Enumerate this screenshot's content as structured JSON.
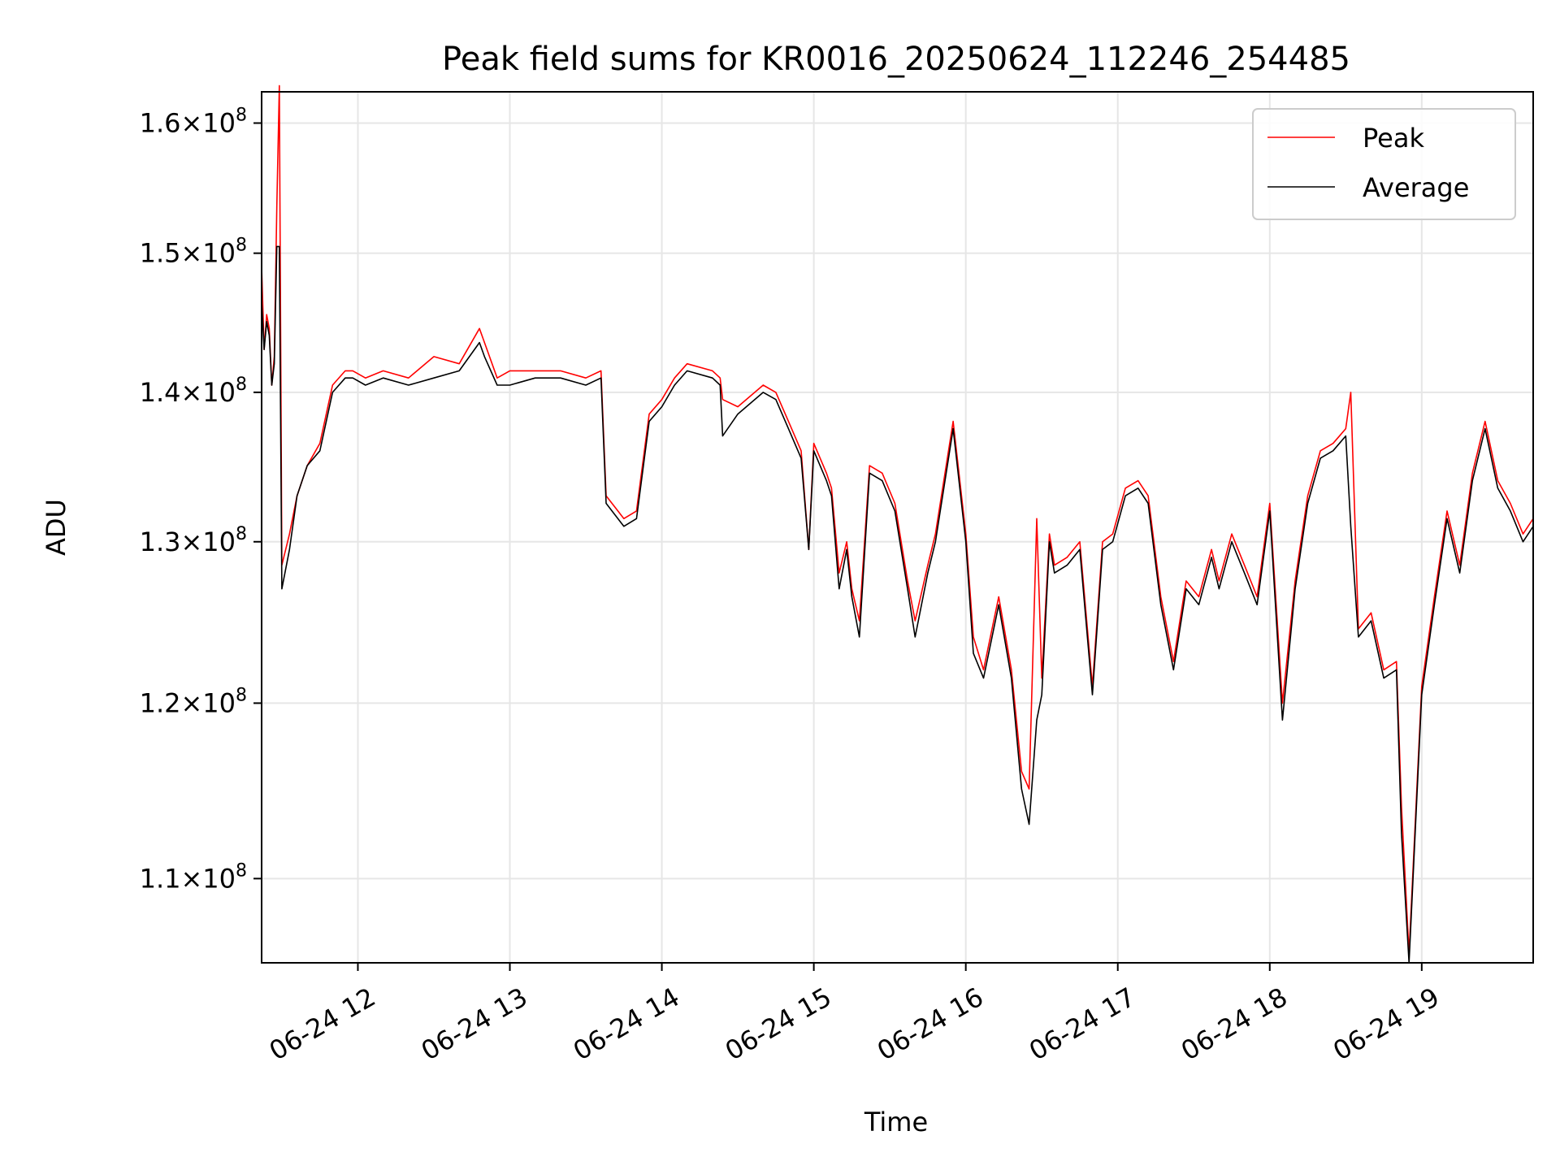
{
  "chart_data": {
    "type": "line",
    "title": "Peak field sums for KR0016_20250624_112246_254485",
    "xlabel": "Time",
    "ylabel": "ADU",
    "yscale": "log",
    "grid": true,
    "legend_position": "upper right",
    "xlim": [
      "2025-06-24 11:22",
      "2025-06-24 19:44"
    ],
    "ylim": [
      105500000,
      162500000
    ],
    "x_ticks": [
      {
        "value": "2025-06-24 12:00",
        "label": "06-24 12"
      },
      {
        "value": "2025-06-24 13:00",
        "label": "06-24 13"
      },
      {
        "value": "2025-06-24 14:00",
        "label": "06-24 14"
      },
      {
        "value": "2025-06-24 15:00",
        "label": "06-24 15"
      },
      {
        "value": "2025-06-24 16:00",
        "label": "06-24 16"
      },
      {
        "value": "2025-06-24 17:00",
        "label": "06-24 17"
      },
      {
        "value": "2025-06-24 18:00",
        "label": "06-24 18"
      },
      {
        "value": "2025-06-24 19:00",
        "label": "06-24 19"
      }
    ],
    "y_ticks": [
      {
        "value": 110000000,
        "mantissa": "1.1",
        "exponent": "8"
      },
      {
        "value": 120000000,
        "mantissa": "1.2",
        "exponent": "8"
      },
      {
        "value": 130000000,
        "mantissa": "1.3",
        "exponent": "8"
      },
      {
        "value": 140000000,
        "mantissa": "1.4",
        "exponent": "8"
      },
      {
        "value": 150000000,
        "mantissa": "1.5",
        "exponent": "8"
      },
      {
        "value": 160000000,
        "mantissa": "1.6",
        "exponent": "8"
      }
    ],
    "y_tick_template": "{m}×10",
    "x": [
      "2025-06-24 11:22",
      "2025-06-24 11:23",
      "2025-06-24 11:24",
      "2025-06-24 11:25",
      "2025-06-24 11:26",
      "2025-06-24 11:27",
      "2025-06-24 11:28",
      "2025-06-24 11:29",
      "2025-06-24 11:30",
      "2025-06-24 11:33",
      "2025-06-24 11:36",
      "2025-06-24 11:40",
      "2025-06-24 11:45",
      "2025-06-24 11:50",
      "2025-06-24 11:55",
      "2025-06-24 11:58",
      "2025-06-24 12:03",
      "2025-06-24 12:10",
      "2025-06-24 12:20",
      "2025-06-24 12:30",
      "2025-06-24 12:40",
      "2025-06-24 12:48",
      "2025-06-24 12:50",
      "2025-06-24 12:55",
      "2025-06-24 13:00",
      "2025-06-24 13:10",
      "2025-06-24 13:20",
      "2025-06-24 13:30",
      "2025-06-24 13:36",
      "2025-06-24 13:38",
      "2025-06-24 13:45",
      "2025-06-24 13:50",
      "2025-06-24 13:55",
      "2025-06-24 14:00",
      "2025-06-24 14:05",
      "2025-06-24 14:10",
      "2025-06-24 14:20",
      "2025-06-24 14:23",
      "2025-06-24 14:24",
      "2025-06-24 14:30",
      "2025-06-24 14:40",
      "2025-06-24 14:45",
      "2025-06-24 14:50",
      "2025-06-24 14:55",
      "2025-06-24 14:58",
      "2025-06-24 15:00",
      "2025-06-24 15:05",
      "2025-06-24 15:07",
      "2025-06-24 15:10",
      "2025-06-24 15:13",
      "2025-06-24 15:15",
      "2025-06-24 15:18",
      "2025-06-24 15:22",
      "2025-06-24 15:27",
      "2025-06-24 15:32",
      "2025-06-24 15:37",
      "2025-06-24 15:40",
      "2025-06-24 15:45",
      "2025-06-24 15:48",
      "2025-06-24 15:55",
      "2025-06-24 16:00",
      "2025-06-24 16:03",
      "2025-06-24 16:07",
      "2025-06-24 16:13",
      "2025-06-24 16:18",
      "2025-06-24 16:22",
      "2025-06-24 16:25",
      "2025-06-24 16:28",
      "2025-06-24 16:30",
      "2025-06-24 16:33",
      "2025-06-24 16:35",
      "2025-06-24 16:40",
      "2025-06-24 16:45",
      "2025-06-24 16:50",
      "2025-06-24 16:54",
      "2025-06-24 16:58",
      "2025-06-24 17:03",
      "2025-06-24 17:08",
      "2025-06-24 17:12",
      "2025-06-24 17:17",
      "2025-06-24 17:22",
      "2025-06-24 17:27",
      "2025-06-24 17:32",
      "2025-06-24 17:37",
      "2025-06-24 17:40",
      "2025-06-24 17:45",
      "2025-06-24 17:50",
      "2025-06-24 17:55",
      "2025-06-24 18:00",
      "2025-06-24 18:05",
      "2025-06-24 18:10",
      "2025-06-24 18:15",
      "2025-06-24 18:20",
      "2025-06-24 18:25",
      "2025-06-24 18:30",
      "2025-06-24 18:32",
      "2025-06-24 18:35",
      "2025-06-24 18:40",
      "2025-06-24 18:45",
      "2025-06-24 18:50",
      "2025-06-24 18:52",
      "2025-06-24 18:55",
      "2025-06-24 19:00",
      "2025-06-24 19:05",
      "2025-06-24 19:10",
      "2025-06-24 19:15",
      "2025-06-24 19:20",
      "2025-06-24 19:25",
      "2025-06-24 19:30",
      "2025-06-24 19:35",
      "2025-06-24 19:40",
      "2025-06-24 19:44"
    ],
    "series": [
      {
        "name": "Peak",
        "color": "#ff0000",
        "values": [
          149000000,
          143000000,
          145500000,
          144500000,
          140500000,
          142500000,
          153500000,
          163000000,
          128500000,
          130500000,
          133000000,
          135000000,
          136500000,
          140500000,
          141500000,
          141500000,
          141000000,
          141500000,
          141000000,
          142500000,
          142000000,
          144500000,
          143500000,
          141000000,
          141500000,
          141500000,
          141500000,
          141000000,
          141500000,
          133000000,
          131500000,
          132000000,
          138500000,
          139500000,
          141000000,
          142000000,
          141500000,
          141000000,
          139500000,
          139000000,
          140500000,
          140000000,
          138000000,
          136000000,
          129500000,
          136500000,
          134500000,
          133500000,
          128000000,
          130000000,
          127000000,
          125000000,
          135000000,
          134500000,
          132500000,
          127500000,
          125000000,
          128500000,
          130500000,
          138000000,
          130500000,
          124000000,
          122000000,
          126500000,
          122000000,
          116000000,
          115000000,
          131500000,
          121500000,
          130500000,
          128500000,
          129000000,
          130000000,
          121000000,
          130000000,
          130500000,
          133500000,
          134000000,
          133000000,
          126500000,
          122500000,
          127500000,
          126500000,
          129500000,
          127500000,
          130500000,
          128500000,
          126500000,
          132500000,
          120000000,
          127500000,
          133000000,
          136000000,
          136500000,
          137500000,
          140000000,
          124500000,
          125500000,
          122000000,
          122500000,
          114000000,
          106000000,
          121000000,
          126500000,
          132000000,
          128500000,
          134500000,
          138000000,
          134000000,
          132500000,
          130500000,
          131500000
        ]
      },
      {
        "name": "Average",
        "color": "#000000",
        "values": [
          146500000,
          143000000,
          145000000,
          144000000,
          140500000,
          142000000,
          150500000,
          150500000,
          127000000,
          129500000,
          133000000,
          135000000,
          136000000,
          140000000,
          141000000,
          141000000,
          140500000,
          141000000,
          140500000,
          141000000,
          141500000,
          143500000,
          142500000,
          140500000,
          140500000,
          141000000,
          141000000,
          140500000,
          141000000,
          132500000,
          131000000,
          131500000,
          138000000,
          139000000,
          140500000,
          141500000,
          141000000,
          140500000,
          137000000,
          138500000,
          140000000,
          139500000,
          137500000,
          135500000,
          129500000,
          136000000,
          134000000,
          133000000,
          127000000,
          129500000,
          126500000,
          124000000,
          134500000,
          134000000,
          132000000,
          127000000,
          124000000,
          128000000,
          130000000,
          137500000,
          130000000,
          123000000,
          121500000,
          126000000,
          121500000,
          115000000,
          113000000,
          119000000,
          120500000,
          130000000,
          128000000,
          128500000,
          129500000,
          120500000,
          129500000,
          130000000,
          133000000,
          133500000,
          132500000,
          126000000,
          122000000,
          127000000,
          126000000,
          129000000,
          127000000,
          130000000,
          128000000,
          126000000,
          132000000,
          119000000,
          127000000,
          132500000,
          135500000,
          136000000,
          137000000,
          131000000,
          124000000,
          125000000,
          121500000,
          122000000,
          112500000,
          105500000,
          120500000,
          126000000,
          131500000,
          128000000,
          134000000,
          137500000,
          133500000,
          132000000,
          130000000,
          131000000
        ]
      }
    ]
  }
}
